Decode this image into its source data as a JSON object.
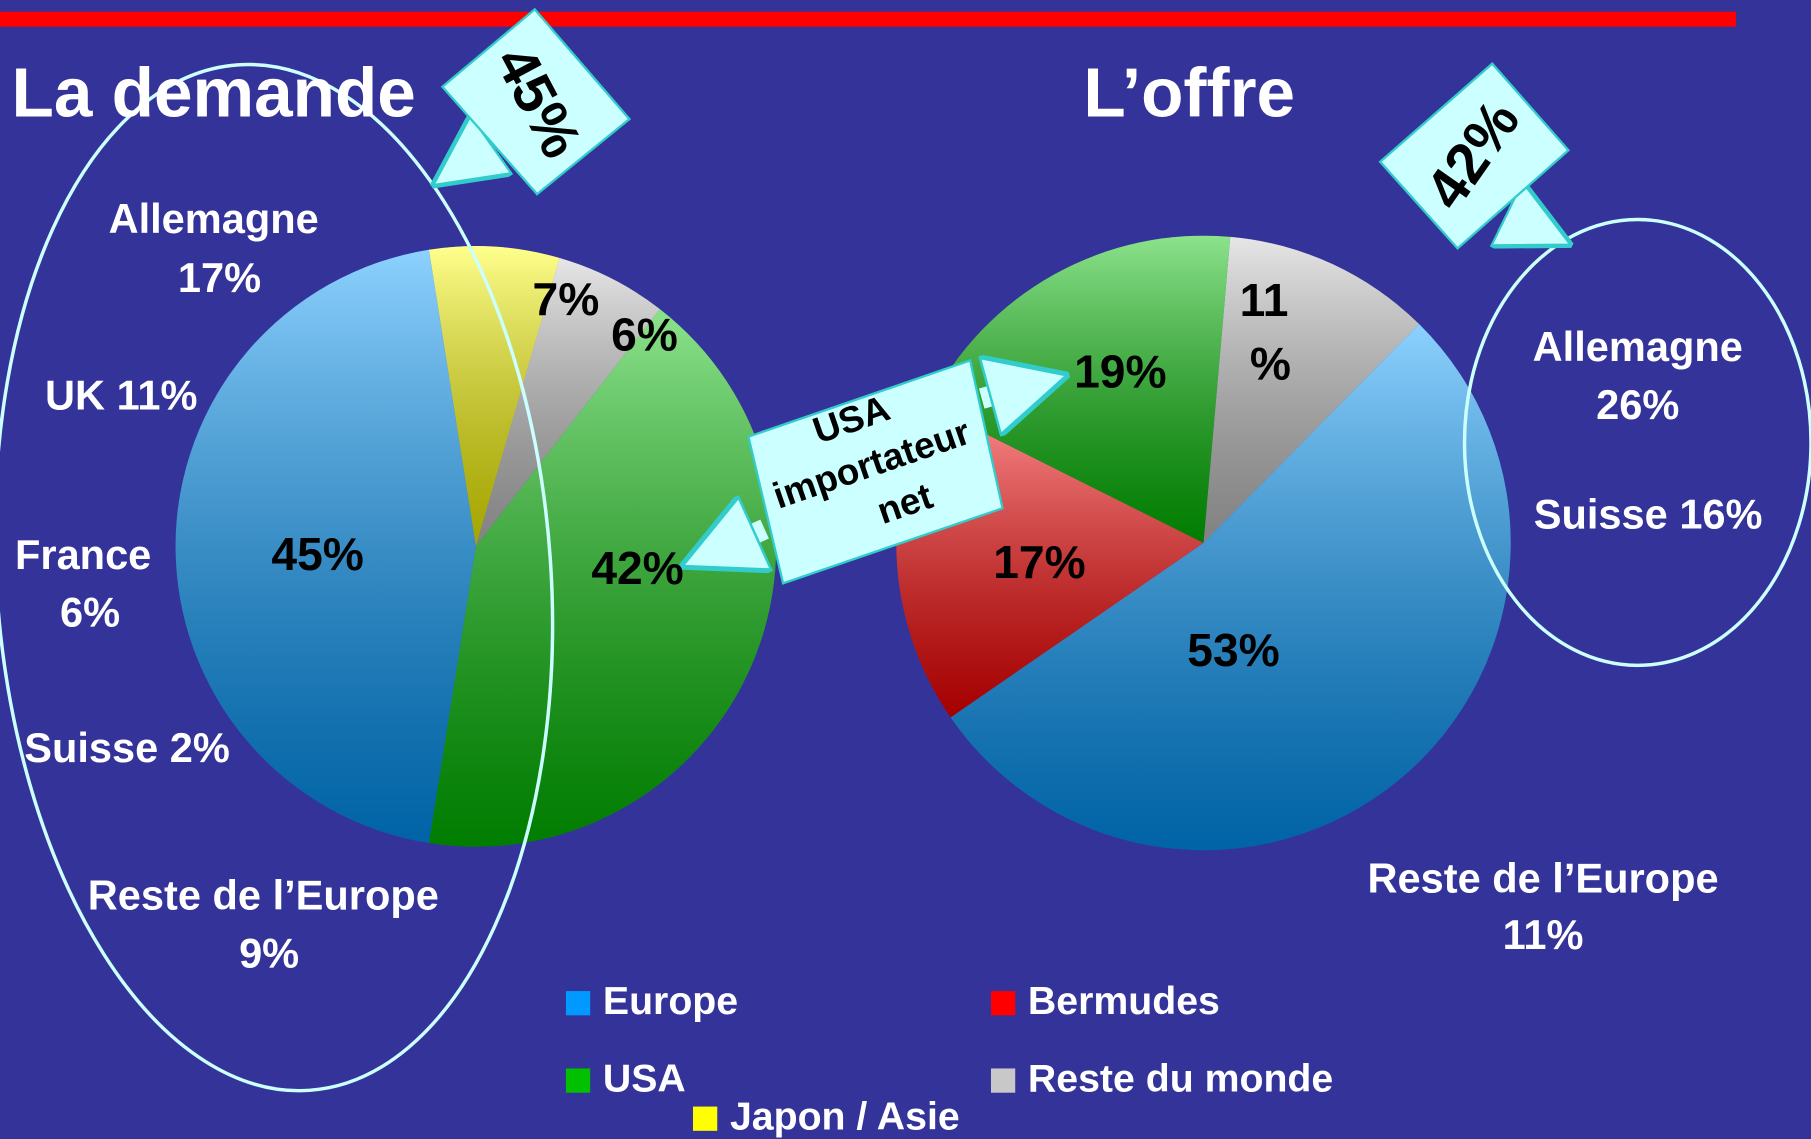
{
  "chart_data": [
    {
      "type": "pie",
      "title": "La demande",
      "categories": [
        "Japon / Asie",
        "Reste du monde",
        "USA",
        "Europe"
      ],
      "values": [
        7,
        6,
        42,
        45
      ],
      "value_labels": [
        "7%",
        "6%",
        "42%",
        "45%"
      ],
      "colors": [
        "#ffff00",
        "#c8c8c8",
        "#00c000",
        "#0099ff"
      ],
      "callout": "45%",
      "annotations": [
        {
          "lines": [
            "Allemagne",
            "17%"
          ]
        },
        {
          "lines": [
            "UK 11%"
          ]
        },
        {
          "lines": [
            "France",
            "6%"
          ]
        },
        {
          "lines": [
            "Suisse 2%"
          ]
        },
        {
          "lines": [
            "Reste de l’Europe",
            "9%"
          ]
        }
      ]
    },
    {
      "type": "pie",
      "title": "L’offre",
      "categories": [
        "Reste du monde",
        "Europe",
        "Bermudes",
        "USA"
      ],
      "values": [
        11,
        53,
        17,
        19
      ],
      "value_labels": [
        "11 %",
        "53%",
        "17%",
        "19%"
      ],
      "colors": [
        "#c8c8c8",
        "#0099ff",
        "#ff0000",
        "#00c000"
      ],
      "callout": "42%",
      "annotations": [
        {
          "lines": [
            "Allemagne",
            "26%"
          ]
        },
        {
          "lines": [
            "Suisse 16%"
          ]
        },
        {
          "lines": [
            "Reste de l’Europe",
            "11%"
          ]
        }
      ]
    }
  ],
  "flow_callout": {
    "lines": [
      "USA",
      "importateur",
      "net"
    ]
  },
  "legend": [
    {
      "name": "Europe",
      "color": "#0099ff"
    },
    {
      "name": "Bermudes",
      "color": "#ff0000"
    },
    {
      "name": "USA",
      "color": "#00c000"
    },
    {
      "name": "Reste du monde",
      "color": "#c8c8c8"
    },
    {
      "name": "Japon / Asie",
      "color": "#ffff00"
    }
  ]
}
